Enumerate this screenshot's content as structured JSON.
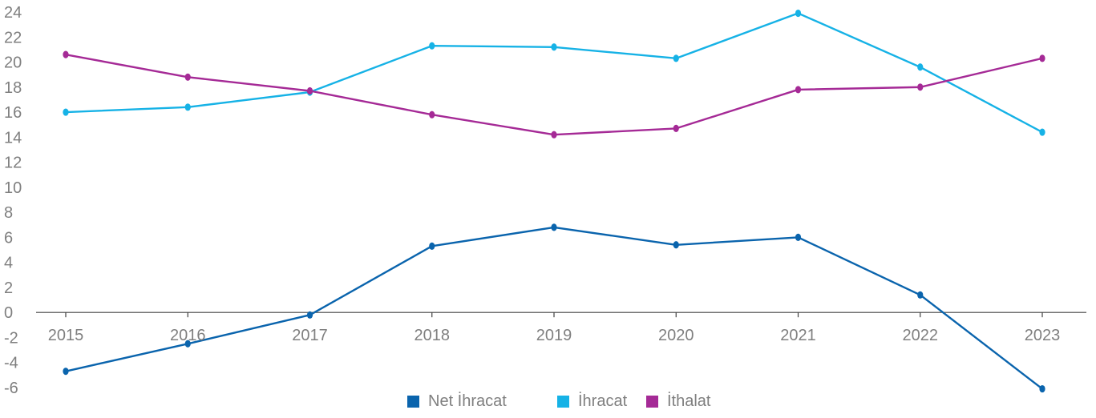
{
  "chart_data": {
    "type": "line",
    "title": "",
    "xlabel": "",
    "ylabel": "",
    "categories": [
      "2015",
      "2016",
      "2017",
      "2018",
      "2019",
      "2020",
      "2021",
      "2022",
      "2023"
    ],
    "ylim": [
      -6,
      24
    ],
    "yticks": [
      -6,
      -4,
      -2,
      0,
      2,
      4,
      6,
      8,
      10,
      12,
      14,
      16,
      18,
      20,
      22,
      24
    ],
    "grid": false,
    "legend_position": "bottom",
    "series": [
      {
        "name": "Net İhracat",
        "color": "#0a64ad",
        "values": [
          -4.7,
          -2.5,
          -0.2,
          5.3,
          6.8,
          5.4,
          6.0,
          1.4,
          -6.1
        ]
      },
      {
        "name": "İhracat",
        "color": "#16b2e6",
        "values": [
          16.0,
          16.4,
          17.6,
          21.3,
          21.2,
          20.3,
          23.9,
          19.6,
          14.4
        ]
      },
      {
        "name": "İthalat",
        "color": "#a52a96",
        "values": [
          20.6,
          18.8,
          17.7,
          15.8,
          14.2,
          14.7,
          17.8,
          18.0,
          20.3
        ]
      }
    ]
  }
}
